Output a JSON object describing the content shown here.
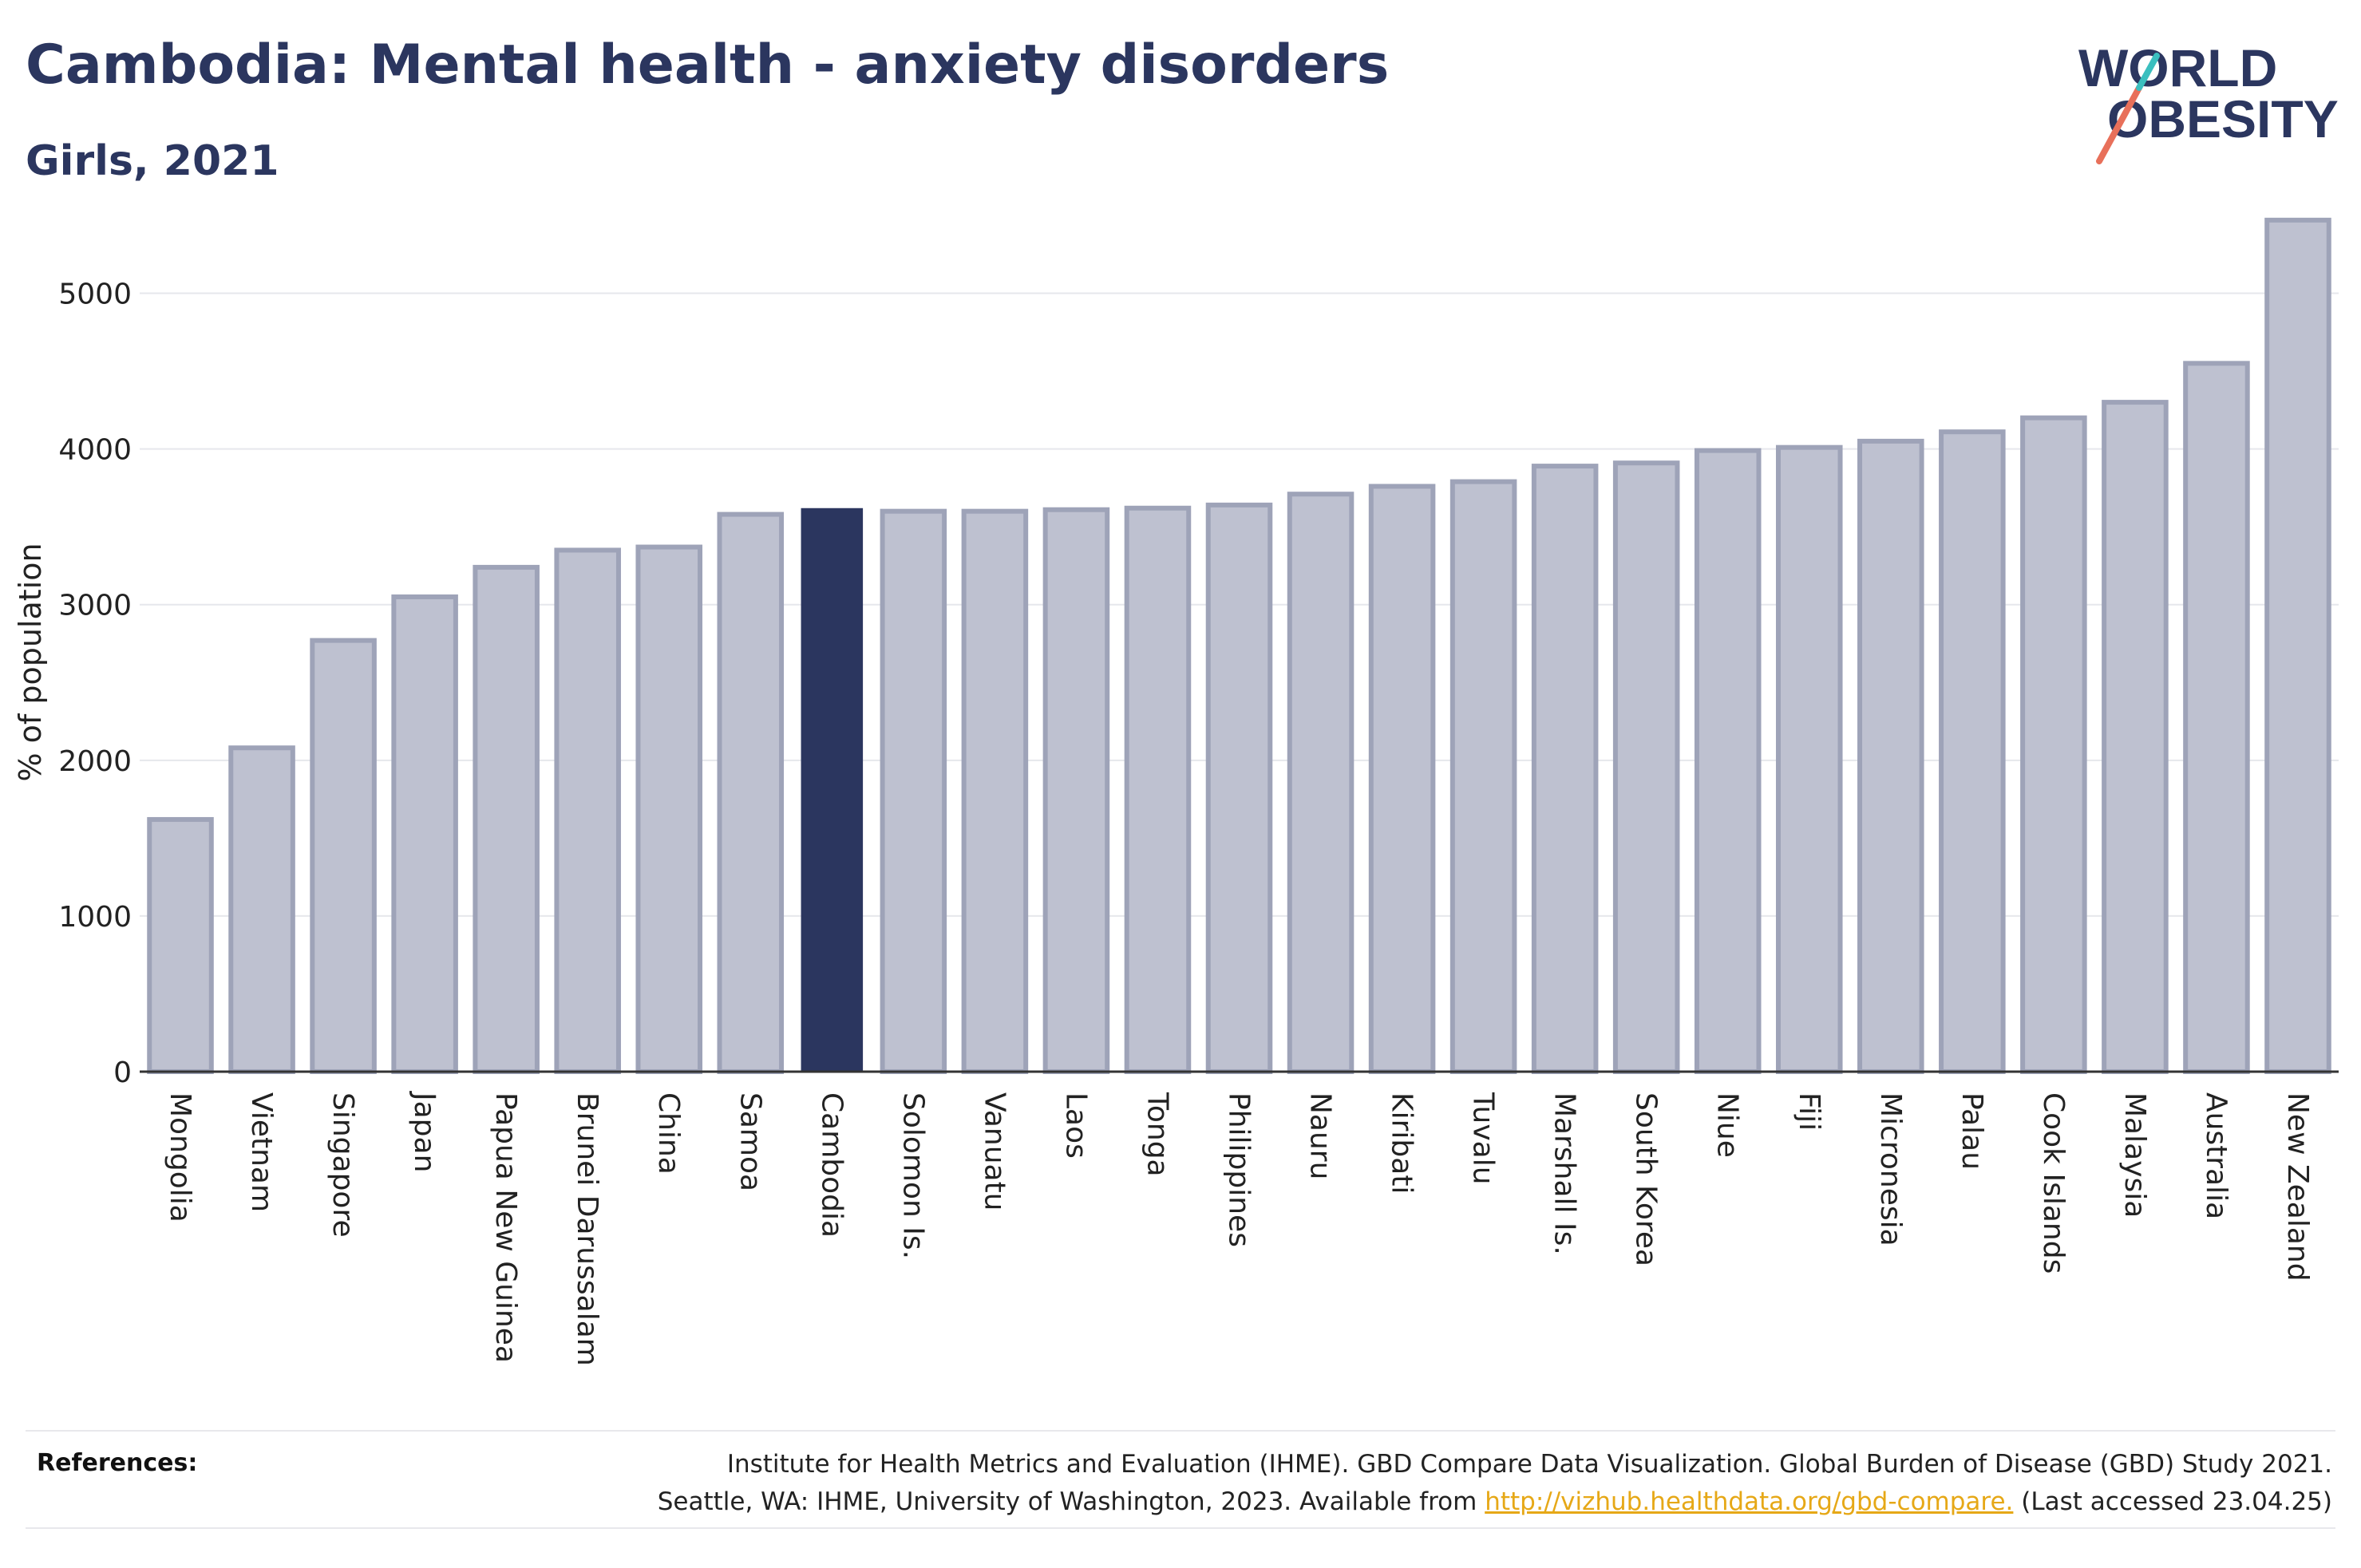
{
  "header": {
    "title": "Cambodia: Mental health - anxiety disorders",
    "subtitle": "Girls, 2021"
  },
  "logo": {
    "line1": "WORLD",
    "line2": "OBESITY",
    "slash_colors": [
      "#e8705a",
      "#3bbfbf"
    ]
  },
  "colors": {
    "highlight": "#2b365f",
    "bar_fill": "#bec1d0",
    "bar_stroke": "#9ea3b8",
    "grid": "#e6e7ec",
    "axis": "#333333"
  },
  "chart_data": {
    "type": "bar",
    "ylabel": "% of population",
    "xlabel": "",
    "ylim": [
      0,
      5500
    ],
    "yticks": [
      0,
      1000,
      2000,
      3000,
      4000,
      5000
    ],
    "grid": true,
    "highlight_category": "Cambodia",
    "categories": [
      "Mongolia",
      "Vietnam",
      "Singapore",
      "Japan",
      "Papua New Guinea",
      "Brunei Darussalam",
      "China",
      "Samoa",
      "Cambodia",
      "Solomon Is.",
      "Vanuatu",
      "Laos",
      "Tonga",
      "Philippines",
      "Nauru",
      "Kiribati",
      "Tuvalu",
      "Marshall Is.",
      "South Korea",
      "Niue",
      "Fiji",
      "Micronesia",
      "Palau",
      "Cook Islands",
      "Malaysia",
      "Australia",
      "New Zealand"
    ],
    "values": [
      1620,
      2080,
      2770,
      3050,
      3240,
      3350,
      3370,
      3580,
      3620,
      3600,
      3600,
      3610,
      3620,
      3640,
      3710,
      3760,
      3790,
      3890,
      3910,
      3990,
      4010,
      4050,
      4110,
      4200,
      4300,
      4550,
      5470
    ]
  },
  "references": {
    "label": "References:",
    "line1": "Institute for Health Metrics and Evaluation (IHME). GBD Compare Data Visualization. Global Burden of Disease (GBD) Study 2021.",
    "line2_prefix": "Seattle, WA: IHME, University of Washington, 2023. Available from ",
    "link_text": "http://vizhub.healthdata.org/gbd-compare.",
    "line2_suffix": " (Last accessed 23.04.25)"
  }
}
